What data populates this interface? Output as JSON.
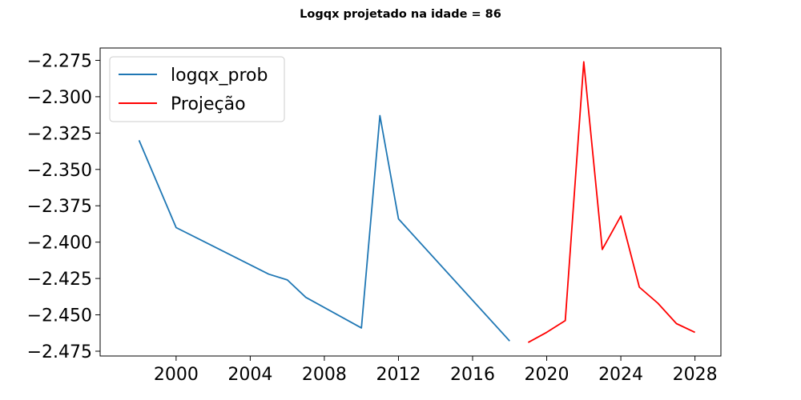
{
  "chart_data": {
    "type": "line",
    "title": "Logqx projetado na idade = 86",
    "xlabel": "",
    "ylabel": "",
    "xlim": [
      1995.9,
      2029.4
    ],
    "ylim": [
      -2.4783,
      -2.2665
    ],
    "x_ticks": [
      2000,
      2004,
      2008,
      2012,
      2016,
      2020,
      2024,
      2028
    ],
    "y_ticks": [
      -2.275,
      -2.3,
      -2.325,
      -2.35,
      -2.375,
      -2.4,
      -2.425,
      -2.45,
      -2.475
    ],
    "y_tick_labels": [
      "−2.275",
      "−2.300",
      "−2.325",
      "−2.350",
      "−2.375",
      "−2.400",
      "−2.425",
      "−2.450",
      "−2.475"
    ],
    "grid": false,
    "legend_position": "top-left",
    "series": [
      {
        "name": "logqx_prob",
        "color": "#1f77b4",
        "x": [
          1998,
          2000,
          2005,
          2006,
          2007,
          2010,
          2011,
          2012,
          2018
        ],
        "y": [
          -2.33,
          -2.39,
          -2.422,
          -2.426,
          -2.438,
          -2.459,
          -2.313,
          -2.384,
          -2.468
        ]
      },
      {
        "name": "Projeção",
        "color": "#ff0000",
        "x": [
          2019,
          2020,
          2021,
          2022,
          2023,
          2024,
          2025,
          2026,
          2027,
          2028
        ],
        "y": [
          -2.469,
          -2.462,
          -2.454,
          -2.276,
          -2.405,
          -2.382,
          -2.431,
          -2.442,
          -2.456,
          -2.462
        ]
      }
    ]
  }
}
